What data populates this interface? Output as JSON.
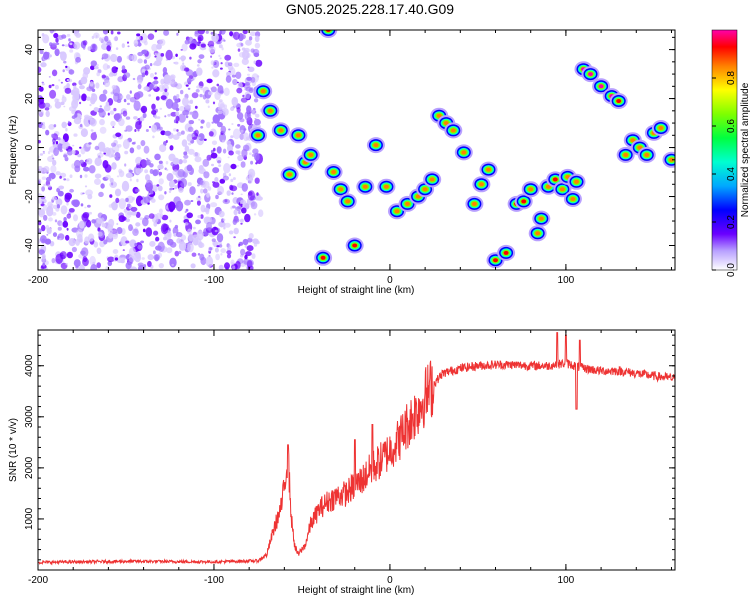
{
  "figure": {
    "title": "GN05.2025.228.17.40.G09"
  },
  "chart_data": [
    {
      "type": "heatmap",
      "title": "GN05.2025.228.17.40.G09",
      "xlabel": "Height of straight line (km)",
      "ylabel": "Frequency (Hz)",
      "xlim": [
        -200,
        162
      ],
      "ylim": [
        -50,
        48
      ],
      "x_ticks": [
        -200,
        -100,
        0,
        100
      ],
      "y_ticks": [
        -40,
        -20,
        0,
        20,
        40
      ],
      "grid": false,
      "noise_region": {
        "x_from": -200,
        "x_to": -75,
        "note_value": "low normalized amplitude, dense speckle"
      },
      "blobs": [
        {
          "x": -35,
          "y": 48,
          "amp": 0.9
        },
        {
          "x": -72,
          "y": 23,
          "amp": 0.85
        },
        {
          "x": -68,
          "y": 15,
          "amp": 0.8
        },
        {
          "x": -75,
          "y": 5,
          "amp": 0.8
        },
        {
          "x": -62,
          "y": 7,
          "amp": 0.85
        },
        {
          "x": -57,
          "y": -11,
          "amp": 0.85
        },
        {
          "x": -52,
          "y": 5,
          "amp": 0.85
        },
        {
          "x": -48,
          "y": -6,
          "amp": 0.85
        },
        {
          "x": -45,
          "y": -3,
          "amp": 0.85
        },
        {
          "x": -38,
          "y": -45,
          "amp": 0.9
        },
        {
          "x": -32,
          "y": -10,
          "amp": 0.85
        },
        {
          "x": -28,
          "y": -17,
          "amp": 0.85
        },
        {
          "x": -24,
          "y": -22,
          "amp": 0.85
        },
        {
          "x": -20,
          "y": -40,
          "amp": 0.9
        },
        {
          "x": -14,
          "y": -16,
          "amp": 0.85
        },
        {
          "x": -8,
          "y": 1,
          "amp": 0.85
        },
        {
          "x": -2,
          "y": -16,
          "amp": 0.85
        },
        {
          "x": 4,
          "y": -26,
          "amp": 0.85
        },
        {
          "x": 10,
          "y": -23,
          "amp": 0.85
        },
        {
          "x": 16,
          "y": -20,
          "amp": 0.85
        },
        {
          "x": 20,
          "y": -17,
          "amp": 0.85
        },
        {
          "x": 24,
          "y": -13,
          "amp": 0.85
        },
        {
          "x": 28,
          "y": 13,
          "amp": 0.85
        },
        {
          "x": 32,
          "y": 10,
          "amp": 0.85
        },
        {
          "x": 36,
          "y": 7,
          "amp": 0.85
        },
        {
          "x": 42,
          "y": -2,
          "amp": 0.85
        },
        {
          "x": 48,
          "y": -23,
          "amp": 0.85
        },
        {
          "x": 52,
          "y": -15,
          "amp": 0.85
        },
        {
          "x": 56,
          "y": -9,
          "amp": 0.85
        },
        {
          "x": 60,
          "y": -46,
          "amp": 0.9
        },
        {
          "x": 66,
          "y": -43,
          "amp": 0.9
        },
        {
          "x": 72,
          "y": -23,
          "amp": 0.9
        },
        {
          "x": 76,
          "y": -22,
          "amp": 0.9
        },
        {
          "x": 80,
          "y": -17,
          "amp": 0.85
        },
        {
          "x": 84,
          "y": -35,
          "amp": 0.85
        },
        {
          "x": 86,
          "y": -29,
          "amp": 0.85
        },
        {
          "x": 90,
          "y": -16,
          "amp": 0.85
        },
        {
          "x": 94,
          "y": -13,
          "amp": 0.9
        },
        {
          "x": 98,
          "y": -17,
          "amp": 0.85
        },
        {
          "x": 101,
          "y": -12,
          "amp": 0.85
        },
        {
          "x": 104,
          "y": -21,
          "amp": 0.85
        },
        {
          "x": 106,
          "y": -14,
          "amp": 0.85
        },
        {
          "x": 110,
          "y": 32,
          "amp": 0.95
        },
        {
          "x": 114,
          "y": 30,
          "amp": 0.95
        },
        {
          "x": 120,
          "y": 25,
          "amp": 0.95
        },
        {
          "x": 126,
          "y": 21,
          "amp": 0.95
        },
        {
          "x": 130,
          "y": 19,
          "amp": 0.9
        },
        {
          "x": 134,
          "y": -3,
          "amp": 0.85
        },
        {
          "x": 138,
          "y": 3,
          "amp": 0.85
        },
        {
          "x": 142,
          "y": 0,
          "amp": 0.85
        },
        {
          "x": 146,
          "y": -3,
          "amp": 0.85
        },
        {
          "x": 150,
          "y": 6,
          "amp": 0.85
        },
        {
          "x": 154,
          "y": 8,
          "amp": 0.85
        },
        {
          "x": 160,
          "y": -5,
          "amp": 0.85
        }
      ],
      "colorbar": {
        "label": "Normalized spectral amplitude",
        "range": [
          0,
          1
        ],
        "ticks": [
          0.0,
          0.2,
          0.4,
          0.6,
          0.8
        ]
      }
    },
    {
      "type": "line",
      "xlabel": "Height of straight line (km)",
      "ylabel": "SNR (10 * v/v)",
      "xlim": [
        -200,
        162
      ],
      "ylim": [
        0,
        4700
      ],
      "x_ticks": [
        -200,
        -100,
        0,
        100
      ],
      "y_ticks": [
        1000,
        2000,
        3000,
        4000
      ],
      "grid": false,
      "color": "#ee3333",
      "profile": [
        [
          -200,
          150
        ],
        [
          -150,
          170
        ],
        [
          -100,
          160
        ],
        [
          -75,
          180
        ],
        [
          -70,
          300
        ],
        [
          -66,
          800
        ],
        [
          -62,
          1200
        ],
        [
          -60,
          1600
        ],
        [
          -58,
          2300
        ],
        [
          -56,
          1000
        ],
        [
          -54,
          450
        ],
        [
          -52,
          300
        ],
        [
          -48,
          500
        ],
        [
          -45,
          900
        ],
        [
          -40,
          1200
        ],
        [
          -35,
          1350
        ],
        [
          -30,
          1450
        ],
        [
          -25,
          1500
        ],
        [
          -20,
          1650
        ],
        [
          -15,
          1800
        ],
        [
          -10,
          2000
        ],
        [
          -5,
          2150
        ],
        [
          0,
          2350
        ],
        [
          5,
          2550
        ],
        [
          10,
          2850
        ],
        [
          15,
          3100
        ],
        [
          20,
          3400
        ],
        [
          25,
          3650
        ],
        [
          30,
          3850
        ],
        [
          40,
          3950
        ],
        [
          50,
          4000
        ],
        [
          60,
          4020
        ],
        [
          70,
          4020
        ],
        [
          80,
          4000
        ],
        [
          90,
          4000
        ],
        [
          100,
          4050
        ],
        [
          110,
          3950
        ],
        [
          120,
          3900
        ],
        [
          130,
          3900
        ],
        [
          140,
          3850
        ],
        [
          150,
          3800
        ],
        [
          162,
          3750
        ]
      ],
      "spikes": [
        {
          "x": -58,
          "y": 2450
        },
        {
          "x": -20,
          "y": 2550
        },
        {
          "x": -10,
          "y": 2850
        },
        {
          "x": 95,
          "y": 4650
        },
        {
          "x": 100,
          "y": 4600
        },
        {
          "x": 106,
          "y": 3150
        },
        {
          "x": 108,
          "y": 4500
        }
      ]
    }
  ]
}
